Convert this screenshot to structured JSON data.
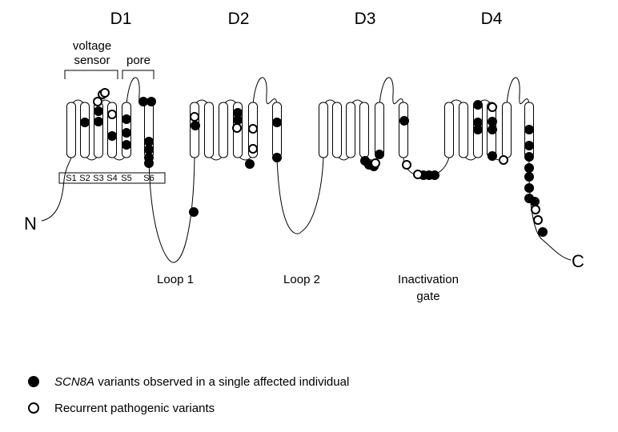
{
  "domains": [
    "D1",
    "D2",
    "D3",
    "D4"
  ],
  "d1_labels": {
    "voltage_sensor_line1": "voltage",
    "voltage_sensor_line2": "sensor",
    "pore": "pore"
  },
  "segments": [
    "S1",
    "S2",
    "S3",
    "S4",
    "S5",
    "S6"
  ],
  "termini": {
    "n": "N",
    "c": "C"
  },
  "loops": {
    "loop1": "Loop 1",
    "loop2": "Loop 2",
    "inactivation_line1": "Inactivation",
    "inactivation_line2": "gate"
  },
  "legend": {
    "filled_italic": "SCN8A",
    "filled_rest": " variants observed in a single affected individual",
    "open": "Recurrent pathogenic variants"
  },
  "colors": {
    "line": "#000000",
    "filled": "#000000",
    "open_fill": "#ffffff"
  }
}
